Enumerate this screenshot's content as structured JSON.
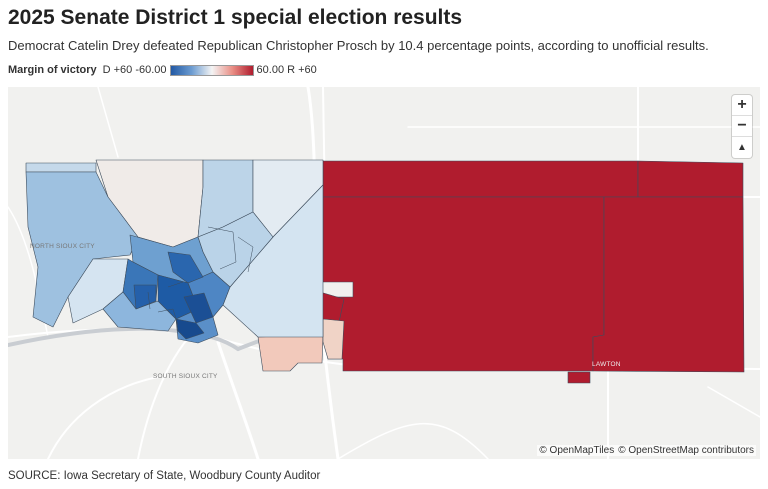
{
  "header": {
    "title": "2025 Senate District 1 special election results",
    "subtitle": "Democrat Catelin Drey defeated Republican Christopher Prosch by 10.4 percentage points, according to unofficial results."
  },
  "legend": {
    "title": "Margin of victory",
    "min_label": "D +60 -60.00",
    "max_label": "60.00 R +60",
    "colors": {
      "dem_strong": "#2259a4",
      "neutral": "#f4f4f4",
      "rep_strong": "#b01c2e"
    }
  },
  "map": {
    "labels": {
      "north_sioux_city": "NORTH SIOUX CITY",
      "south_sioux_city": "SOUTH SIOUX CITY",
      "lawton": "LAWTON"
    },
    "controls": {
      "zoom_in": "+",
      "zoom_out": "−",
      "reset_north": "▲"
    },
    "attribution": {
      "openmaptiles": "© OpenMapTiles",
      "osm": "© OpenStreetMap contributors"
    }
  },
  "footer": {
    "source": "SOURCE: Iowa Secretary of State, Woodbury County Auditor"
  }
}
